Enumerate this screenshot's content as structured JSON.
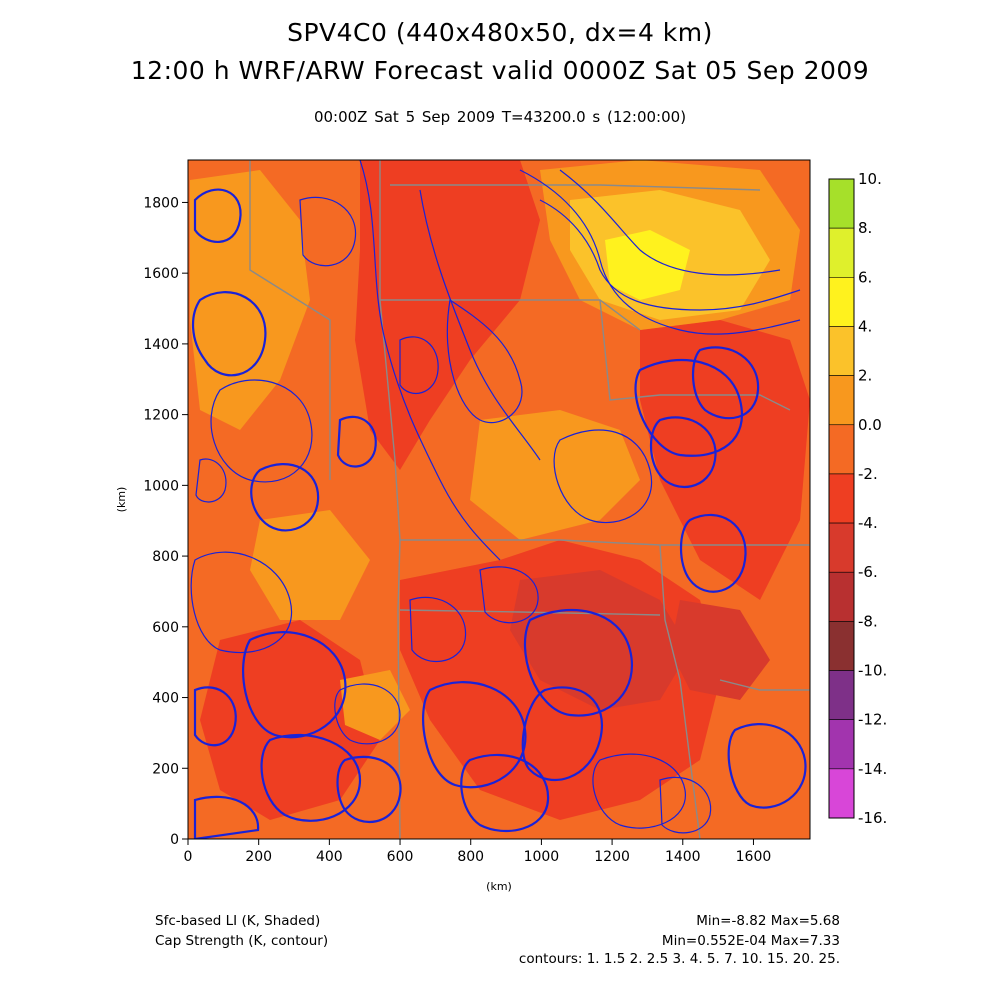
{
  "header": {
    "title_line1": "SPV4C0 (440x480x50, dx=4 km)",
    "title_line2": "12:00 h WRF/ARW Forecast valid 0000Z Sat 05 Sep 2009",
    "subtitle": "00:00Z Sat  5 Sep 2009     T=43200.0 s (12:00:00)"
  },
  "map": {
    "x_unit": "(km)",
    "y_unit": "(km)",
    "x_range": [
      0,
      1760
    ],
    "y_range": [
      0,
      1920
    ],
    "x_ticks": [
      0,
      200,
      400,
      600,
      800,
      1000,
      1200,
      1400,
      1600
    ],
    "y_ticks": [
      0,
      200,
      400,
      600,
      800,
      1000,
      1200,
      1400,
      1600,
      1800
    ],
    "x_tick_labels": [
      "0",
      "200",
      "400",
      "600",
      "800",
      "1000",
      "1200",
      "1400",
      "1600"
    ],
    "y_tick_labels": [
      "0",
      "200",
      "400",
      "600",
      "800",
      "1000",
      "1200",
      "1400",
      "1600",
      "1800"
    ],
    "base_color": "#f46a24",
    "contour_color": "#1a22d8",
    "border_color": "#8a8a8a"
  },
  "colorbar": {
    "labels": [
      "10.",
      "8.",
      "6.",
      "4.",
      "2.",
      "0.0",
      "-2.",
      "-4.",
      "-6.",
      "-8.",
      "-10.",
      "-12.",
      "-14.",
      "-16."
    ],
    "bins": [
      {
        "from": 8,
        "to": 10,
        "color": "#a6e02a"
      },
      {
        "from": 6,
        "to": 8,
        "color": "#dff02c"
      },
      {
        "from": 4,
        "to": 6,
        "color": "#fff21e"
      },
      {
        "from": 2,
        "to": 4,
        "color": "#fbc22a"
      },
      {
        "from": 0,
        "to": 2,
        "color": "#f8981e"
      },
      {
        "from": -2,
        "to": 0,
        "color": "#f46a24"
      },
      {
        "from": -4,
        "to": -2,
        "color": "#ee3e22"
      },
      {
        "from": -6,
        "to": -4,
        "color": "#d83a2c"
      },
      {
        "from": -8,
        "to": -6,
        "color": "#b83030"
      },
      {
        "from": -10,
        "to": -8,
        "color": "#8a3030"
      },
      {
        "from": -12,
        "to": -10,
        "color": "#7e3088"
      },
      {
        "from": -14,
        "to": -12,
        "color": "#a234ae"
      },
      {
        "from": -16,
        "to": -14,
        "color": "#d846d8"
      }
    ]
  },
  "footer": {
    "left_line1": "Sfc-based LI (K, Shaded)",
    "left_line2": "Cap Strength (K, contour)",
    "right_line1": "Min=-8.82 Max=5.68",
    "right_line2": "Min=0.552E-04 Max=7.33",
    "right_line3": "contours: 1. 1.5 2. 2.5 3. 4. 5. 7. 10. 15. 20. 25."
  }
}
